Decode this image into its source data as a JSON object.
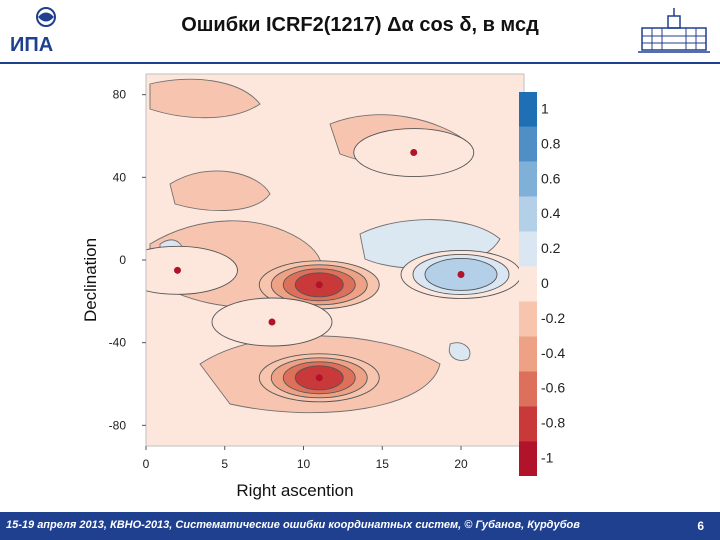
{
  "header": {
    "title": "Ошибки ICRF2(1217) Δα cos δ,  в мсд",
    "logo_left_text": "ИПА",
    "logo_right_text": "RAS building",
    "logo_right_name": "building-logo"
  },
  "chart_data": {
    "type": "heatmap",
    "title": "",
    "xlabel": "Right ascention",
    "ylabel": "Declination",
    "xlim": [
      0,
      24
    ],
    "ylim": [
      -90,
      90
    ],
    "x_ticks": [
      0,
      5,
      10,
      15,
      20
    ],
    "y_ticks": [
      80,
      40,
      0,
      -40,
      -80
    ],
    "colorbar": {
      "levels": [
        1,
        0.8,
        0.6,
        0.4,
        0.2,
        0,
        -0.2,
        -0.4,
        -0.6,
        -0.8,
        -1
      ],
      "colors": [
        "#1f6fb4",
        "#4f8fc5",
        "#7fb0d8",
        "#b3d0e8",
        "#dae7f3",
        "#fde7dd",
        "#f7c4ad",
        "#eda286",
        "#dd705b",
        "#c9393a",
        "#b0132a"
      ]
    },
    "features": [
      {
        "kind": "min",
        "x": 11,
        "y": -12,
        "value": -0.8
      },
      {
        "kind": "min",
        "x": 11,
        "y": -57,
        "value": -0.8
      },
      {
        "kind": "max",
        "x": 20,
        "y": -7,
        "value": 0.6
      },
      {
        "kind": "max",
        "x": 8,
        "y": -30,
        "value": 0.2
      },
      {
        "kind": "max",
        "x": 17,
        "y": 52,
        "value": 0.2
      },
      {
        "kind": "max",
        "x": 2,
        "y": -5,
        "value": 0.2
      }
    ],
    "grid": false
  },
  "footer": {
    "text": "15-19  апреля  2013,  КВНО-2013,  Систематические ошибки координатных систем, © Губанов, Курдубов",
    "page": "6"
  }
}
